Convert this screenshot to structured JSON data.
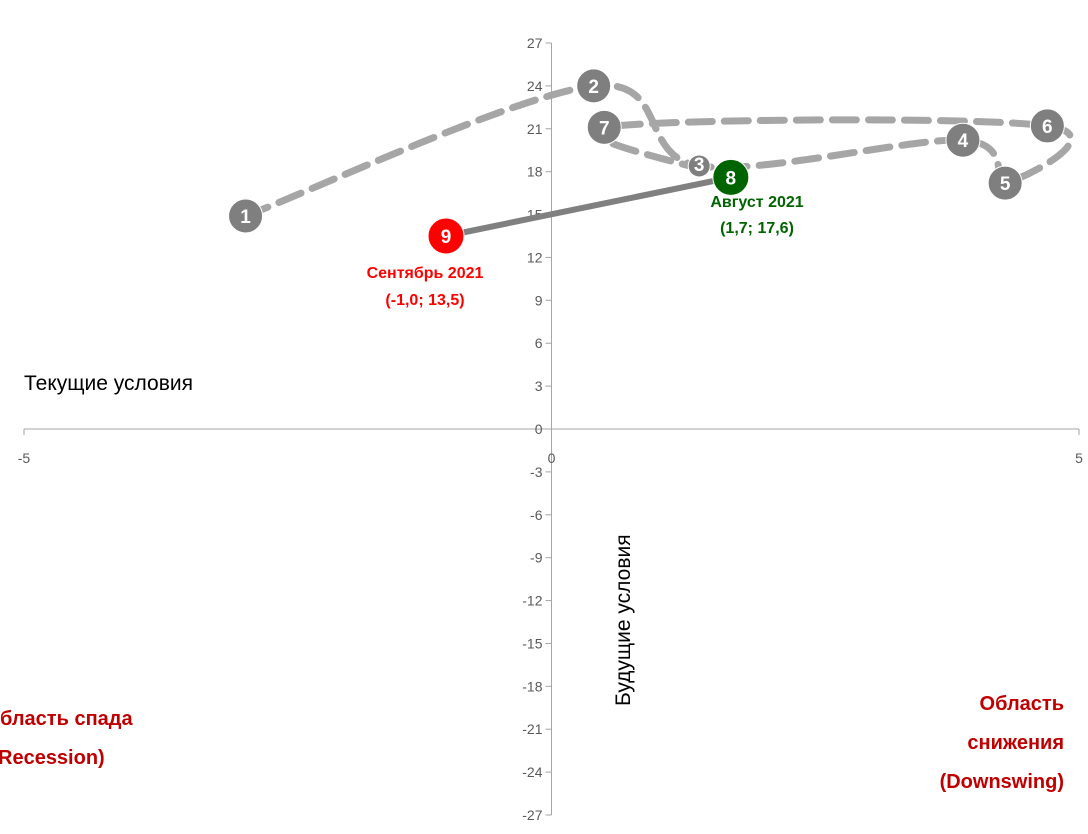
{
  "chart_data": {
    "type": "scatter",
    "xlim": [
      -5,
      5
    ],
    "ylim": [
      -27,
      27
    ],
    "x_ticks": [
      -5,
      0,
      5
    ],
    "y_ticks": [
      27,
      24,
      21,
      18,
      15,
      12,
      9,
      6,
      3,
      0,
      -3,
      -6,
      -9,
      -12,
      -15,
      -18,
      -21,
      -24,
      -27
    ],
    "xlabel": "Текущие условия",
    "ylabel": "Будущие условия",
    "grid": false,
    "points": [
      {
        "label": "1",
        "x": -2.9,
        "y": 14.9
      },
      {
        "label": "2",
        "x": 0.4,
        "y": 24.0
      },
      {
        "label": "3",
        "x": 1.4,
        "y": 18.4
      },
      {
        "label": "4",
        "x": 3.9,
        "y": 20.2
      },
      {
        "label": "5",
        "x": 4.3,
        "y": 17.2
      },
      {
        "label": "6",
        "x": 4.7,
        "y": 21.2
      },
      {
        "label": "7",
        "x": 0.5,
        "y": 21.1
      },
      {
        "label": "8",
        "x": 1.7,
        "y": 17.6
      },
      {
        "label": "9",
        "x": -1.0,
        "y": 13.5
      }
    ],
    "colors": {
      "history": "#7f7f7f",
      "history_line": "#a6a6a6",
      "current_line": "#808080",
      "previous": "#006400",
      "current": "#ff0000",
      "region_text": "#c00000",
      "axis": "#a6a6a6",
      "tick_text": "#595959"
    },
    "callouts": [
      {
        "point": "8",
        "line1": "Август 2021",
        "line2": "(1,7; 17,6)",
        "color": "#006400"
      },
      {
        "point": "9",
        "line1": "Сентябрь 2021",
        "line2": "(-1,0; 13,5)",
        "color": "#ff0000"
      }
    ],
    "regions": {
      "recession": [
        "бласть спада",
        "Recession)"
      ],
      "downswing": [
        "Область",
        "снижения",
        "(Downswing)"
      ]
    }
  }
}
